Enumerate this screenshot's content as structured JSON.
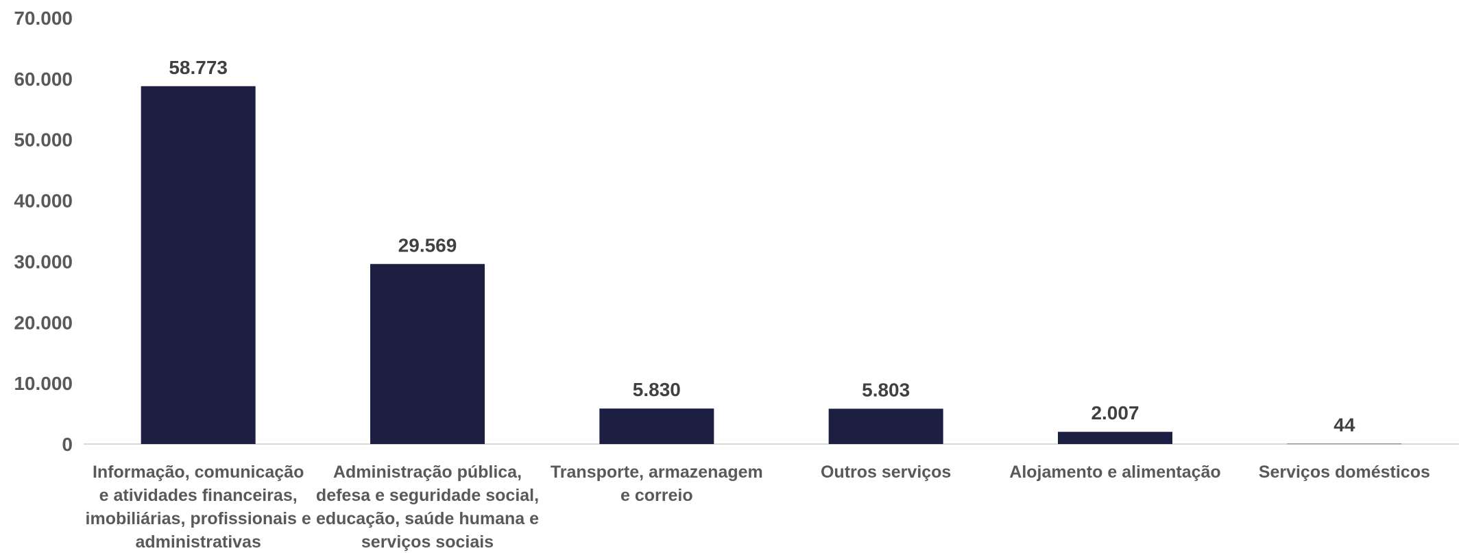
{
  "chart_data": {
    "type": "bar",
    "title": "",
    "xlabel": "",
    "ylabel": "",
    "ylim": [
      0,
      70000
    ],
    "yticks": [
      {
        "value": 0,
        "label": "0"
      },
      {
        "value": 10000,
        "label": "10.000"
      },
      {
        "value": 20000,
        "label": "20.000"
      },
      {
        "value": 30000,
        "label": "30.000"
      },
      {
        "value": 40000,
        "label": "40.000"
      },
      {
        "value": 50000,
        "label": "50.000"
      },
      {
        "value": 60000,
        "label": "60.000"
      },
      {
        "value": 70000,
        "label": "70.000"
      }
    ],
    "grid": false,
    "legend": "none",
    "bar_color": "#1c1f42",
    "categories": [
      [
        "Informação, comunicação",
        "e atividades financeiras,",
        "imobiliárias, profissionais e",
        "administrativas"
      ],
      [
        "Administração pública,",
        "defesa e seguridade social,",
        "educação, saúde humana e",
        "serviços sociais"
      ],
      [
        "Transporte, armazenagem",
        "e correio"
      ],
      [
        "Outros serviços"
      ],
      [
        "Alojamento e alimentação"
      ],
      [
        "Serviços domésticos"
      ]
    ],
    "values": [
      58773,
      29569,
      5830,
      5803,
      2007,
      44
    ],
    "value_labels": [
      "58.773",
      "29.569",
      "5.830",
      "5.803",
      "2.007",
      "44"
    ]
  }
}
